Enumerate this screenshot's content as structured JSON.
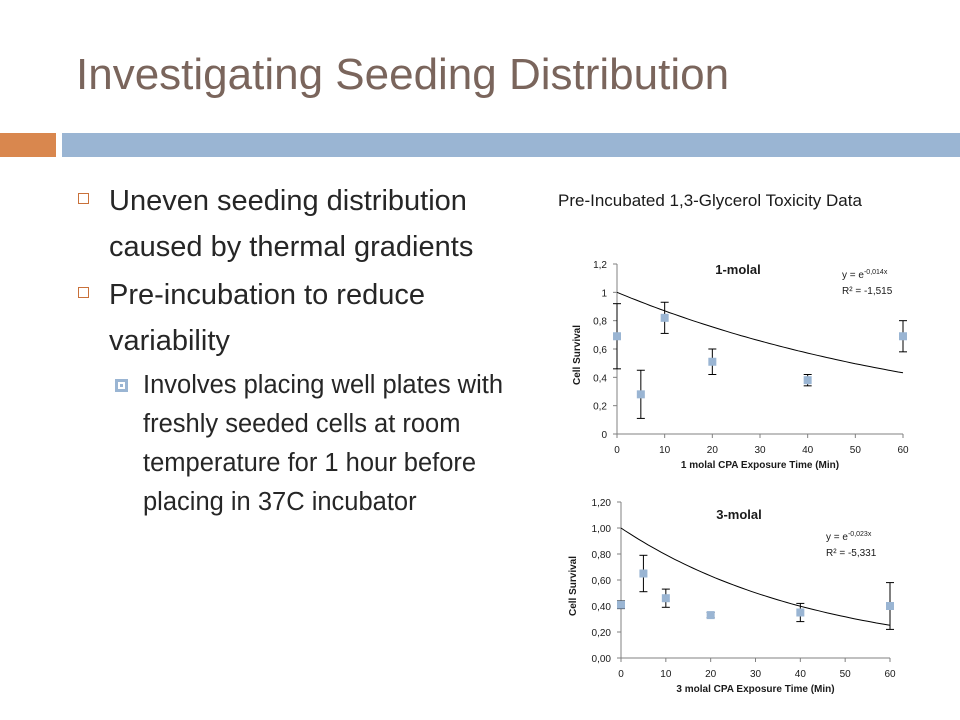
{
  "slide": {
    "title": "Investigating  Seeding Distribution",
    "bullets": [
      {
        "text": "Uneven seeding distribution caused by thermal gradients"
      },
      {
        "text": "Pre-incubation to reduce variability"
      }
    ],
    "sub_bullets": [
      {
        "text": "Involves placing well plates with freshly seeded cells at room temperature for 1 hour before placing in 37C incubator"
      }
    ],
    "chart_heading": "Pre-Incubated 1,3-Glycerol Toxicity Data"
  },
  "chart_data": [
    {
      "type": "scatter",
      "title": "1-molal",
      "xlabel": "1 molal CPA Exposure Time (Min)",
      "ylabel": "Cell Survival",
      "xlim": [
        0,
        60
      ],
      "ylim": [
        0,
        1.2
      ],
      "xticks": [
        "0",
        "10",
        "20",
        "30",
        "40",
        "50",
        "60"
      ],
      "yticks": [
        "0",
        "0,2",
        "0,4",
        "0,6",
        "0,8",
        "1",
        "1,2"
      ],
      "x": [
        0,
        5,
        10,
        20,
        40,
        60
      ],
      "y": [
        0.69,
        0.28,
        0.82,
        0.51,
        0.38,
        0.69
      ],
      "error": [
        0.23,
        0.17,
        0.11,
        0.09,
        0.04,
        0.11
      ],
      "trendline": {
        "type": "exponential",
        "a": 1,
        "b": -0.014
      },
      "equation": {
        "prefix": "y = e",
        "exponent": "-0,014x",
        "r2": "R² = -1,515"
      },
      "grid": false,
      "legend": "none"
    },
    {
      "type": "scatter",
      "title": "3-molal",
      "xlabel": "3 molal CPA Exposure Time (Min)",
      "ylabel": "Cell Survival",
      "xlim": [
        0,
        60
      ],
      "ylim": [
        0,
        1.2
      ],
      "xticks": [
        "0",
        "10",
        "20",
        "30",
        "40",
        "50",
        "60"
      ],
      "yticks": [
        "0,00",
        "0,20",
        "0,40",
        "0,60",
        "0,80",
        "1,00",
        "1,20"
      ],
      "x": [
        0,
        5,
        10,
        20,
        40,
        60
      ],
      "y": [
        0.41,
        0.65,
        0.46,
        0.33,
        0.35,
        0.4
      ],
      "error": [
        0.03,
        0.14,
        0.07,
        0.02,
        0.07,
        0.18
      ],
      "trendline": {
        "type": "exponential",
        "a": 1,
        "b": -0.023
      },
      "equation": {
        "prefix": "y = e",
        "exponent": "-0,023x",
        "r2": "R² = -5,331"
      },
      "grid": false,
      "legend": "none"
    }
  ],
  "colors": {
    "title": "#7a655c",
    "accent_orange": "#d9874e",
    "accent_blue": "#9ab5d3",
    "marker": "#9ab5d3"
  }
}
